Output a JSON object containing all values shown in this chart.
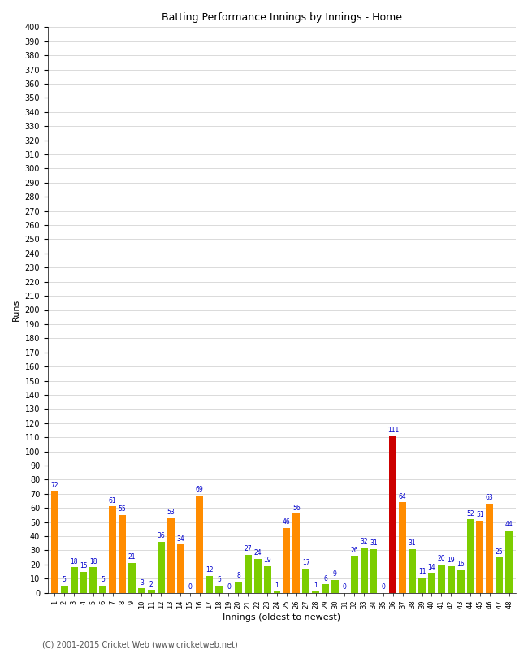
{
  "title": "Batting Performance Innings by Innings - Home",
  "xlabel": "Innings (oldest to newest)",
  "ylabel": "Runs",
  "ylim": [
    0,
    400
  ],
  "copyright": "(C) 2001-2015 Cricket Web (www.cricketweb.net)",
  "values": [
    72,
    5,
    18,
    15,
    18,
    5,
    61,
    55,
    21,
    3,
    2,
    36,
    53,
    34,
    0,
    69,
    12,
    5,
    0,
    8,
    27,
    24,
    19,
    1,
    46,
    56,
    17,
    1,
    6,
    9,
    0,
    26,
    32,
    31,
    0,
    111,
    64,
    31,
    11,
    14,
    20,
    19,
    16,
    52,
    51,
    63,
    25,
    44
  ],
  "colors": [
    "#ff8c00",
    "#7ccd00",
    "#7ccd00",
    "#7ccd00",
    "#7ccd00",
    "#7ccd00",
    "#ff8c00",
    "#ff8c00",
    "#7ccd00",
    "#7ccd00",
    "#7ccd00",
    "#7ccd00",
    "#ff8c00",
    "#ff8c00",
    "#7ccd00",
    "#ff8c00",
    "#7ccd00",
    "#7ccd00",
    "#7ccd00",
    "#7ccd00",
    "#7ccd00",
    "#7ccd00",
    "#7ccd00",
    "#7ccd00",
    "#ff8c00",
    "#ff8c00",
    "#7ccd00",
    "#7ccd00",
    "#7ccd00",
    "#7ccd00",
    "#7ccd00",
    "#7ccd00",
    "#7ccd00",
    "#7ccd00",
    "#7ccd00",
    "#cc0000",
    "#ff8c00",
    "#7ccd00",
    "#7ccd00",
    "#7ccd00",
    "#7ccd00",
    "#7ccd00",
    "#7ccd00",
    "#7ccd00",
    "#ff8c00",
    "#ff8c00",
    "#7ccd00",
    "#7ccd00"
  ],
  "bar_color_orange": "#ff8c00",
  "bar_color_green": "#7ccd00",
  "bar_color_red": "#cc0000",
  "label_color": "#0000cc",
  "grid_color": "#cccccc",
  "bg_color": "#ffffff",
  "title_fontsize": 9,
  "axis_label_fontsize": 8,
  "tick_fontsize": 6,
  "ytick_fontsize": 7,
  "bar_label_fontsize": 5.5,
  "copyright_fontsize": 7,
  "copyright_color": "#555555"
}
